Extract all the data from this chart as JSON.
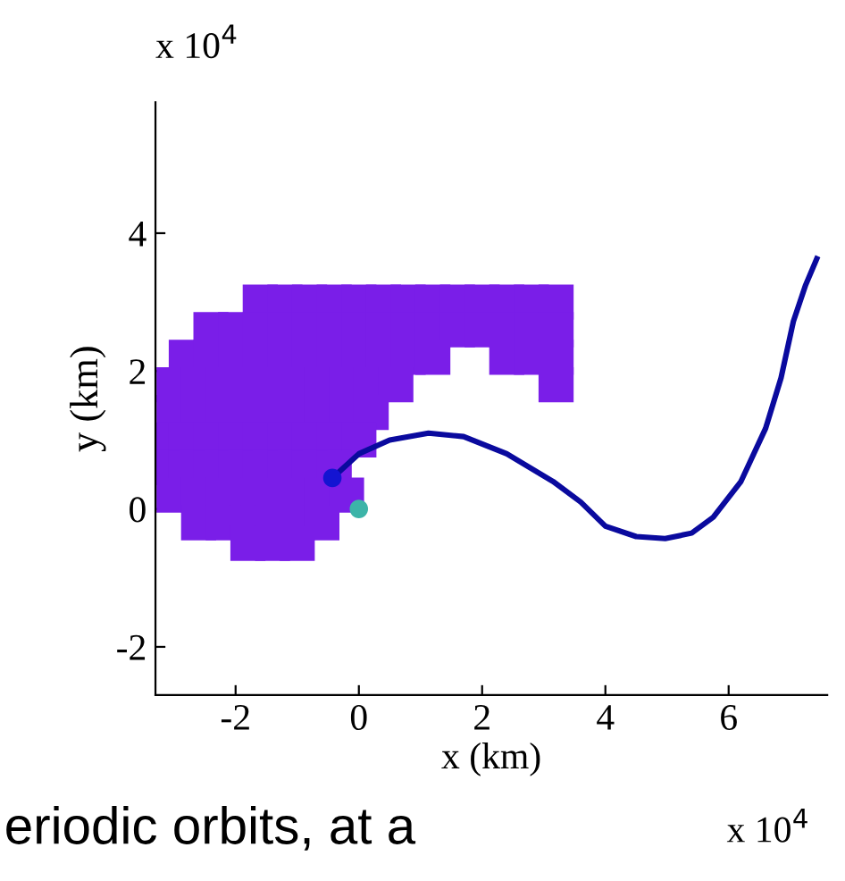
{
  "chart_data": {
    "type": "scatter",
    "xlabel": "x (km)",
    "ylabel": "y (km)",
    "annotations": [
      "x 10$^{4}$",
      "x 10$^{4}$",
      "eriodic orbits, at a"
    ],
    "xlim": [
      -3.3,
      7.6
    ],
    "ylim": [
      -2.7,
      5.9
    ],
    "xticks": [
      -2,
      0,
      2,
      4,
      6
    ],
    "yticks": [
      -2,
      0,
      2,
      4
    ],
    "grid": false,
    "legend": false,
    "series": [
      {
        "marker": "square",
        "color": "#7a1ee8",
        "x": [
          -1.6,
          -1.2,
          -0.8,
          -0.4,
          0.0,
          0.4,
          0.8,
          1.2,
          1.6,
          2.0,
          2.4,
          2.8,
          3.2,
          -2.4,
          -2.0,
          -1.6,
          -1.2,
          -0.8,
          -0.4,
          0.0,
          0.4,
          0.8,
          1.2,
          1.6,
          2.0,
          2.4,
          2.8,
          3.2,
          -2.8,
          -2.4,
          -2.0,
          -1.6,
          -1.2,
          -0.8,
          -0.4,
          0.0,
          0.4,
          0.8,
          1.2,
          2.4,
          2.8,
          3.2,
          -3.0,
          -2.6,
          -2.2,
          -1.8,
          -1.4,
          -1.0,
          -0.6,
          -0.2,
          0.2,
          0.6,
          3.2,
          -3.0,
          -2.6,
          -2.2,
          -1.8,
          -1.4,
          -1.0,
          -0.6,
          -0.2,
          0.2,
          -3.2,
          -2.8,
          -2.4,
          -2.0,
          -1.6,
          -1.2,
          -0.8,
          -0.4,
          0.0,
          -3.2,
          -2.8,
          -2.4,
          -2.0,
          -1.6,
          -1.2,
          -0.8,
          -0.4,
          -3.0,
          -2.6,
          -2.2,
          -1.8,
          -1.4,
          -1.0,
          -0.6,
          -0.2,
          -2.6,
          -2.2,
          -1.8,
          -1.4,
          -1.0,
          -0.6,
          -1.8,
          -1.4,
          -1.0
        ],
        "values": [
          3.0,
          3.0,
          3.0,
          3.0,
          3.0,
          3.0,
          3.0,
          3.0,
          3.0,
          3.0,
          3.0,
          3.0,
          3.0,
          2.6,
          2.6,
          2.6,
          2.6,
          2.6,
          2.6,
          2.6,
          2.6,
          2.6,
          2.6,
          2.6,
          2.6,
          2.6,
          2.6,
          2.6,
          2.2,
          2.2,
          2.2,
          2.2,
          2.2,
          2.2,
          2.2,
          2.2,
          2.2,
          2.2,
          2.2,
          2.2,
          2.2,
          2.2,
          1.8,
          1.8,
          1.8,
          1.8,
          1.8,
          1.8,
          1.8,
          1.8,
          1.8,
          1.8,
          1.8,
          1.4,
          1.4,
          1.4,
          1.4,
          1.4,
          1.4,
          1.4,
          1.4,
          1.4,
          1.0,
          1.0,
          1.0,
          1.0,
          1.0,
          1.0,
          1.0,
          1.0,
          1.0,
          0.6,
          0.6,
          0.6,
          0.6,
          0.6,
          0.6,
          0.6,
          0.6,
          0.2,
          0.2,
          0.2,
          0.2,
          0.2,
          0.2,
          0.2,
          0.2,
          -0.2,
          -0.2,
          -0.2,
          -0.2,
          -0.2,
          -0.2,
          -0.5,
          -0.5,
          -0.5
        ]
      },
      {
        "type": "line",
        "marker": "none",
        "line_style": "solid",
        "color": "#0a0a9e",
        "x": [
          -0.43,
          0.0,
          0.5,
          1.13,
          1.7,
          2.4,
          3.15,
          3.6,
          4.0,
          4.5,
          4.97,
          5.4,
          5.75,
          6.2,
          6.6,
          6.85,
          7.05,
          7.25,
          7.43
        ],
        "values": [
          0.45,
          0.8,
          1.0,
          1.1,
          1.05,
          0.8,
          0.4,
          0.1,
          -0.25,
          -0.4,
          -0.43,
          -0.35,
          -0.12,
          0.4,
          1.17,
          1.9,
          2.72,
          3.25,
          3.63
        ]
      },
      {
        "marker": "circle",
        "color": "#1414d2",
        "x": [
          -0.43
        ],
        "values": [
          0.45
        ]
      },
      {
        "marker": "circle",
        "color": "#3cb4a8",
        "x": [
          0.0
        ],
        "values": [
          0.0
        ]
      }
    ]
  }
}
